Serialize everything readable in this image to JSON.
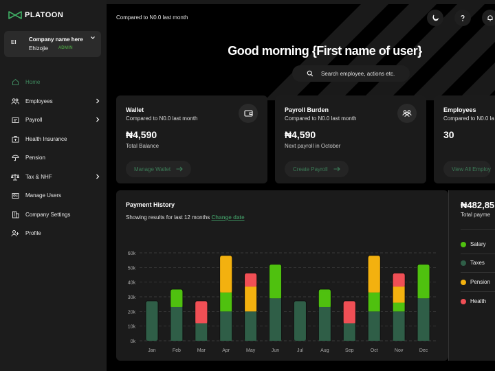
{
  "brand": {
    "name": "PLATOON"
  },
  "company": {
    "initials": "EI",
    "name": "Company name here",
    "user": "Ehizojie",
    "role": "ADMIN"
  },
  "nav": [
    {
      "label": "Home",
      "icon": "home-icon",
      "active": true,
      "has_arrow": false
    },
    {
      "label": "Employees",
      "icon": "users-icon",
      "active": false,
      "has_arrow": true
    },
    {
      "label": "Payroll",
      "icon": "payroll-icon",
      "active": false,
      "has_arrow": true
    },
    {
      "label": "Health Insurance",
      "icon": "medical-kit-icon",
      "active": false,
      "has_arrow": false
    },
    {
      "label": "Pension",
      "icon": "umbrella-icon",
      "active": false,
      "has_arrow": false
    },
    {
      "label": "Tax & NHF",
      "icon": "scale-icon",
      "active": false,
      "has_arrow": true
    },
    {
      "label": "Manage Users",
      "icon": "id-card-icon",
      "active": false,
      "has_arrow": false
    },
    {
      "label": "Company Settings",
      "icon": "building-icon",
      "active": false,
      "has_arrow": false
    },
    {
      "label": "Profile",
      "icon": "user-plus-icon",
      "active": false,
      "has_arrow": false
    }
  ],
  "header": {
    "compare_text": "Compared to N0.0 last month",
    "greeting": "Good morning {First name of user}",
    "search_placeholder": "Search employee, actions etc."
  },
  "cards": [
    {
      "title": "Wallet",
      "subtitle": "Compared to N0.0 last month",
      "value": "₦4,590",
      "label": "Total Balance",
      "button": "Manage Wallet",
      "icon": "wallet-icon"
    },
    {
      "title": "Payroll Burden",
      "subtitle": "Compared to N0.0 last month",
      "value": "₦4,590",
      "label": "Next payroll in October",
      "button": "Create Payroll",
      "icon": "users-group-icon"
    },
    {
      "title": "Employees",
      "subtitle": "Compared to N0.0 la",
      "value": "30",
      "label": "",
      "button": "View All Employ",
      "icon": ""
    }
  ],
  "history": {
    "title": "Payment History",
    "subtitle": "Showing results for last 12 months",
    "link": "Change date"
  },
  "summary": {
    "value": "₦482,85",
    "label": "Total payme",
    "legend": [
      {
        "name": "Salary",
        "color": "#4fc10f"
      },
      {
        "name": "Taxes",
        "color": "#2f5e47"
      },
      {
        "name": "Pension",
        "color": "#f3b10f"
      },
      {
        "name": "Health",
        "color": "#f04f55"
      }
    ]
  },
  "colors": {
    "accent": "#3c8a5c",
    "salary": "#4fc10f",
    "taxes": "#2f5e47",
    "pension": "#f3b10f",
    "health": "#f04f55"
  },
  "chart_data": {
    "type": "bar",
    "stacked": true,
    "categories": [
      "Jan",
      "Feb",
      "Mar",
      "Apr",
      "May",
      "Jun",
      "Jul",
      "Aug",
      "Sep",
      "Oct",
      "Nov",
      "Dec"
    ],
    "series": [
      {
        "name": "Taxes",
        "color": "#2f5e47",
        "values": [
          27,
          23,
          12,
          20,
          20,
          29,
          27,
          23,
          12,
          20,
          20,
          29
        ]
      },
      {
        "name": "Salary",
        "color": "#4fc10f",
        "values": [
          0,
          12,
          0,
          13,
          0,
          23,
          0,
          12,
          0,
          13,
          6,
          23
        ]
      },
      {
        "name": "Pension",
        "color": "#f3b10f",
        "values": [
          0,
          0,
          0,
          25,
          17,
          0,
          0,
          0,
          0,
          25,
          11,
          0
        ]
      },
      {
        "name": "Health",
        "color": "#f04f55",
        "values": [
          0,
          0,
          15,
          0,
          9,
          0,
          0,
          0,
          15,
          0,
          9,
          0
        ]
      }
    ],
    "y_ticks": [
      "0k",
      "10k",
      "20k",
      "30k",
      "40k",
      "50k",
      "60k"
    ],
    "ylim": [
      0,
      60
    ],
    "grid": true
  }
}
